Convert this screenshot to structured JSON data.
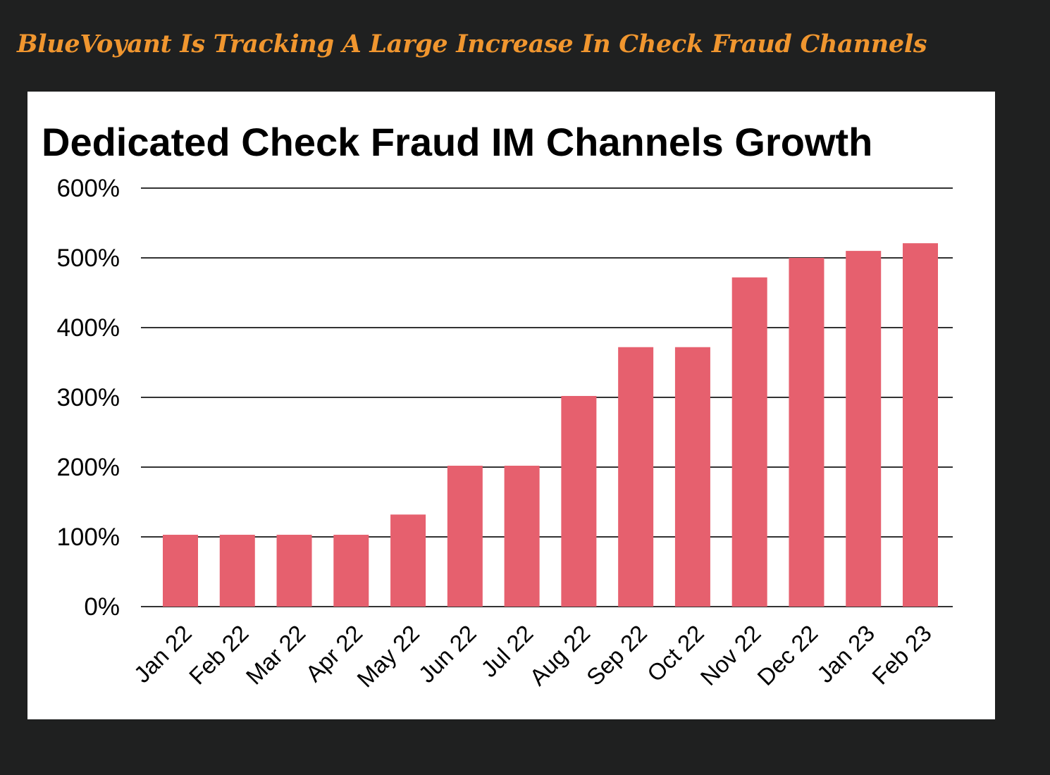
{
  "headline": "BlueVoyant Is Tracking A Large Increase In Check Fraud Channels",
  "chart_data": {
    "type": "bar",
    "title": "Dedicated Check Fraud IM Channels Growth",
    "xlabel": "",
    "ylabel": "",
    "categories": [
      "Jan 22",
      "Feb 22",
      "Mar 22",
      "Apr 22",
      "May 22",
      "Jun 22",
      "Jul 22",
      "Aug 22",
      "Sep 22",
      "Oct 22",
      "Nov 22",
      "Dec 22",
      "Jan 23",
      "Feb 23"
    ],
    "values": [
      103,
      103,
      103,
      103,
      132,
      202,
      202,
      302,
      372,
      372,
      472,
      500,
      510,
      521
    ],
    "ylim": [
      0,
      600
    ],
    "yticks": [
      0,
      100,
      200,
      300,
      400,
      500,
      600
    ],
    "ytick_labels": [
      "0%",
      "100%",
      "200%",
      "300%",
      "400%",
      "500%",
      "600%"
    ],
    "grid": true,
    "bar_color": "#e6606e"
  }
}
